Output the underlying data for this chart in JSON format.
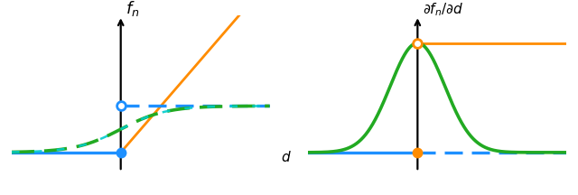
{
  "fig_width": 6.4,
  "fig_height": 2.16,
  "dpi": 100,
  "left_title": "$f_n$",
  "right_title": "$\\partial f_n/\\partial d$",
  "xlabel": "$d$",
  "color_orange": "#FF8C00",
  "color_blue": "#1E90FF",
  "color_green_solid": "#22AA22",
  "color_cyan": "#00CCCC",
  "bg_color": "#FFFFFF",
  "lw_main": 2.0,
  "lw_axis": 1.6
}
